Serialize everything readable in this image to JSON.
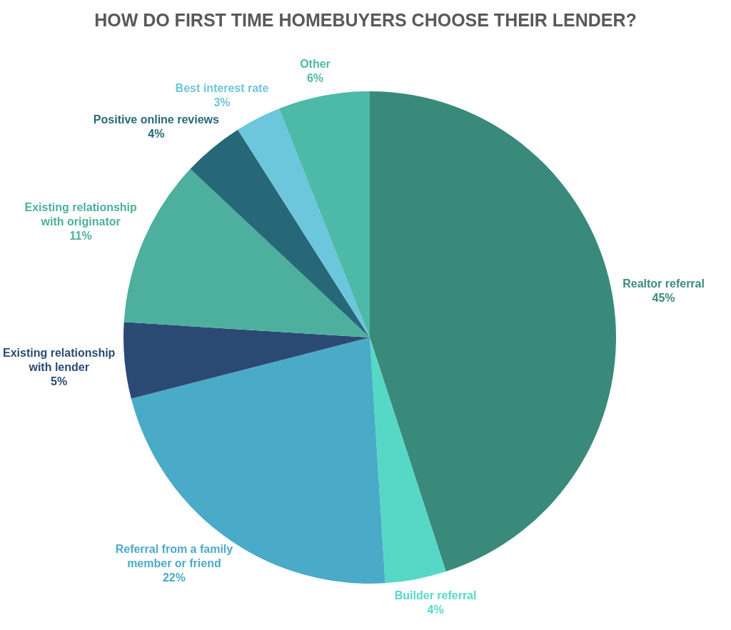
{
  "chart_data": {
    "type": "pie",
    "title": "HOW DO FIRST TIME HOMEBUYERS CHOOSE THEIR LENDER?",
    "categories": [
      "Realtor referral",
      "Builder referral",
      "Referral from a family member or friend",
      "Existing relationship with lender",
      "Existing relationship with originator",
      "Positive online reviews",
      "Best interest rate",
      "Other"
    ],
    "values": [
      45,
      4,
      22,
      5,
      11,
      4,
      3,
      6
    ],
    "colors": [
      "#3a8a7c",
      "#55d9c6",
      "#4aabc8",
      "#2b4a73",
      "#4db09e",
      "#266878",
      "#6cc6dc",
      "#4dbaa8"
    ],
    "value_labels": [
      "45%",
      "4%",
      "22%",
      "5%",
      "11%",
      "4%",
      "3%",
      "6%"
    ],
    "legend": false
  }
}
